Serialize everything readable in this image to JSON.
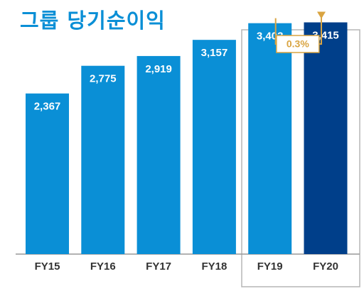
{
  "chart_data": {
    "type": "bar",
    "title": "그룹 당기순이익",
    "categories": [
      "FY15",
      "FY16",
      "FY17",
      "FY18",
      "FY19",
      "FY20"
    ],
    "values": [
      2367,
      2775,
      2919,
      3157,
      3403,
      3415
    ],
    "value_labels": [
      "2,367",
      "2,775",
      "2,919",
      "3,157",
      "3,403",
      "3,415"
    ],
    "ylim": [
      0,
      3640
    ],
    "grid": false,
    "highlight": {
      "categories": [
        "FY19",
        "FY20"
      ],
      "growth_label": "0.3%"
    },
    "colors": {
      "bar": "#0a8fd6",
      "bar_highlight": "#003f8a",
      "arrow": "#d9a441",
      "box": "#b5b5b5",
      "axis": "#999999",
      "title": "#0a8fd6"
    }
  }
}
